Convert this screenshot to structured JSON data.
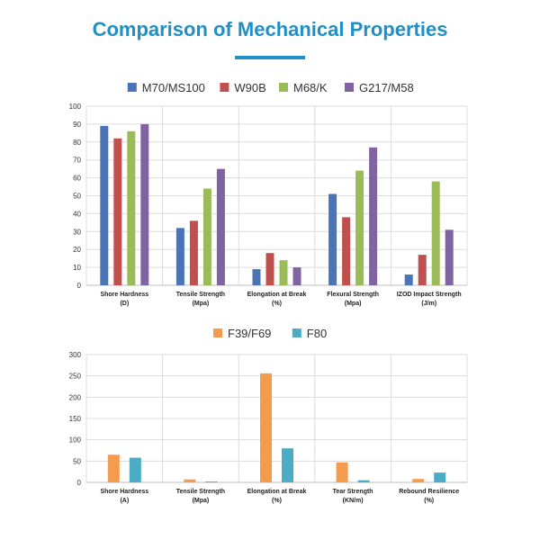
{
  "page_title": "Comparison of Mechanical Properties",
  "chart_data": [
    {
      "type": "bar",
      "categories": [
        [
          "Shore Hardness",
          "(D)"
        ],
        [
          "Tensile Strength",
          "(Mpa)"
        ],
        [
          "Elongation at Break",
          "(%)"
        ],
        [
          "Flexural Strength",
          "(Mpa)"
        ],
        [
          "IZOD Impact Strength",
          "(J/m)"
        ]
      ],
      "series": [
        {
          "name": "M70/MS100",
          "color": "#4a74b5",
          "values": [
            89,
            32,
            9,
            51,
            6
          ]
        },
        {
          "name": "W90B",
          "color": "#c0504d",
          "values": [
            82,
            36,
            18,
            38,
            17
          ]
        },
        {
          "name": "M68/K",
          "color": "#9bbb59",
          "values": [
            86,
            54,
            14,
            64,
            58
          ]
        },
        {
          "name": "G217/M58",
          "color": "#8064a2",
          "values": [
            90,
            65,
            10,
            77,
            31
          ]
        }
      ],
      "ylim": [
        0,
        100
      ],
      "yticks": [
        0,
        10,
        20,
        30,
        40,
        50,
        60,
        70,
        80,
        90,
        100
      ],
      "grid": true,
      "legend": "top"
    },
    {
      "type": "bar",
      "categories": [
        [
          "Shore Hardness",
          "(A)"
        ],
        [
          "Tensile Strength",
          "(Mpa)"
        ],
        [
          "Elongation at Break",
          "(%)"
        ],
        [
          "Tear Strength",
          "(KN/m)"
        ],
        [
          "Rebound Resilience",
          "(%)"
        ]
      ],
      "series": [
        {
          "name": "F39/F69",
          "color": "#f49b4e",
          "values": [
            65,
            7,
            256,
            47,
            8
          ]
        },
        {
          "name": "F80",
          "color": "#4bacc6",
          "values": [
            58,
            2,
            80,
            5,
            23
          ]
        }
      ],
      "ylim": [
        0,
        300
      ],
      "yticks": [
        0,
        50,
        100,
        150,
        200,
        250,
        300
      ],
      "grid": true,
      "legend": "top"
    }
  ]
}
